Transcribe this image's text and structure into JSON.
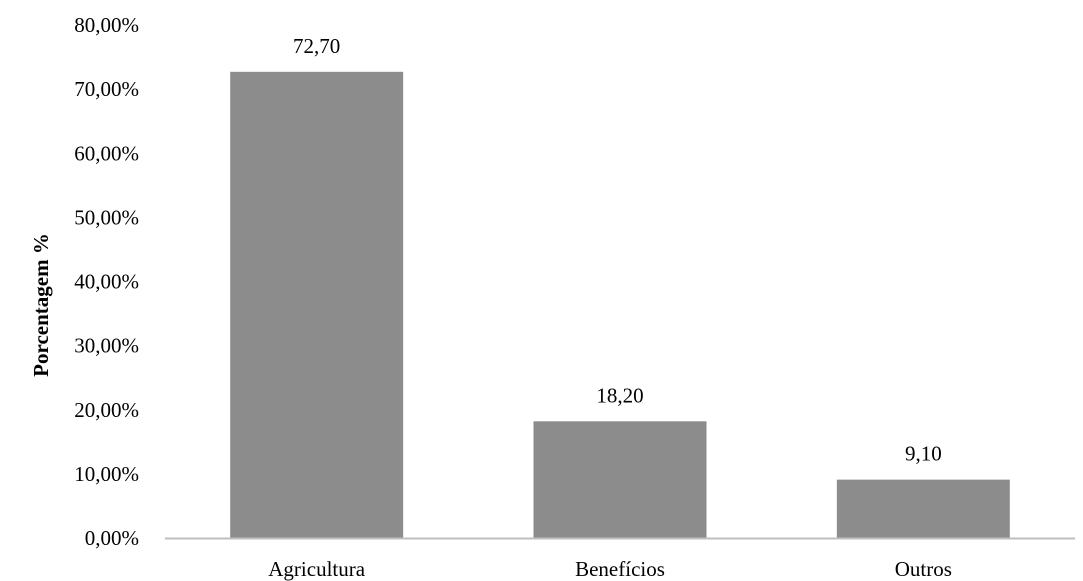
{
  "chart_data": {
    "type": "bar",
    "categories": [
      "Agricultura",
      "Benefícios",
      "Outros"
    ],
    "values": [
      72.7,
      18.2,
      9.1
    ],
    "data_labels": [
      "72,70",
      "18,20",
      "9,10"
    ],
    "ylabel": "Porcentagem %",
    "xlabel": "",
    "ylim": [
      0,
      80
    ],
    "yticks": [
      "0,00%",
      "10,00%",
      "20,00%",
      "30,00%",
      "40,00%",
      "50,00%",
      "60,00%",
      "70,00%",
      "80,00%"
    ],
    "grid": false,
    "legend": "none",
    "bar_color": "#8c8c8c",
    "axis_color": "#bfbfbf"
  }
}
